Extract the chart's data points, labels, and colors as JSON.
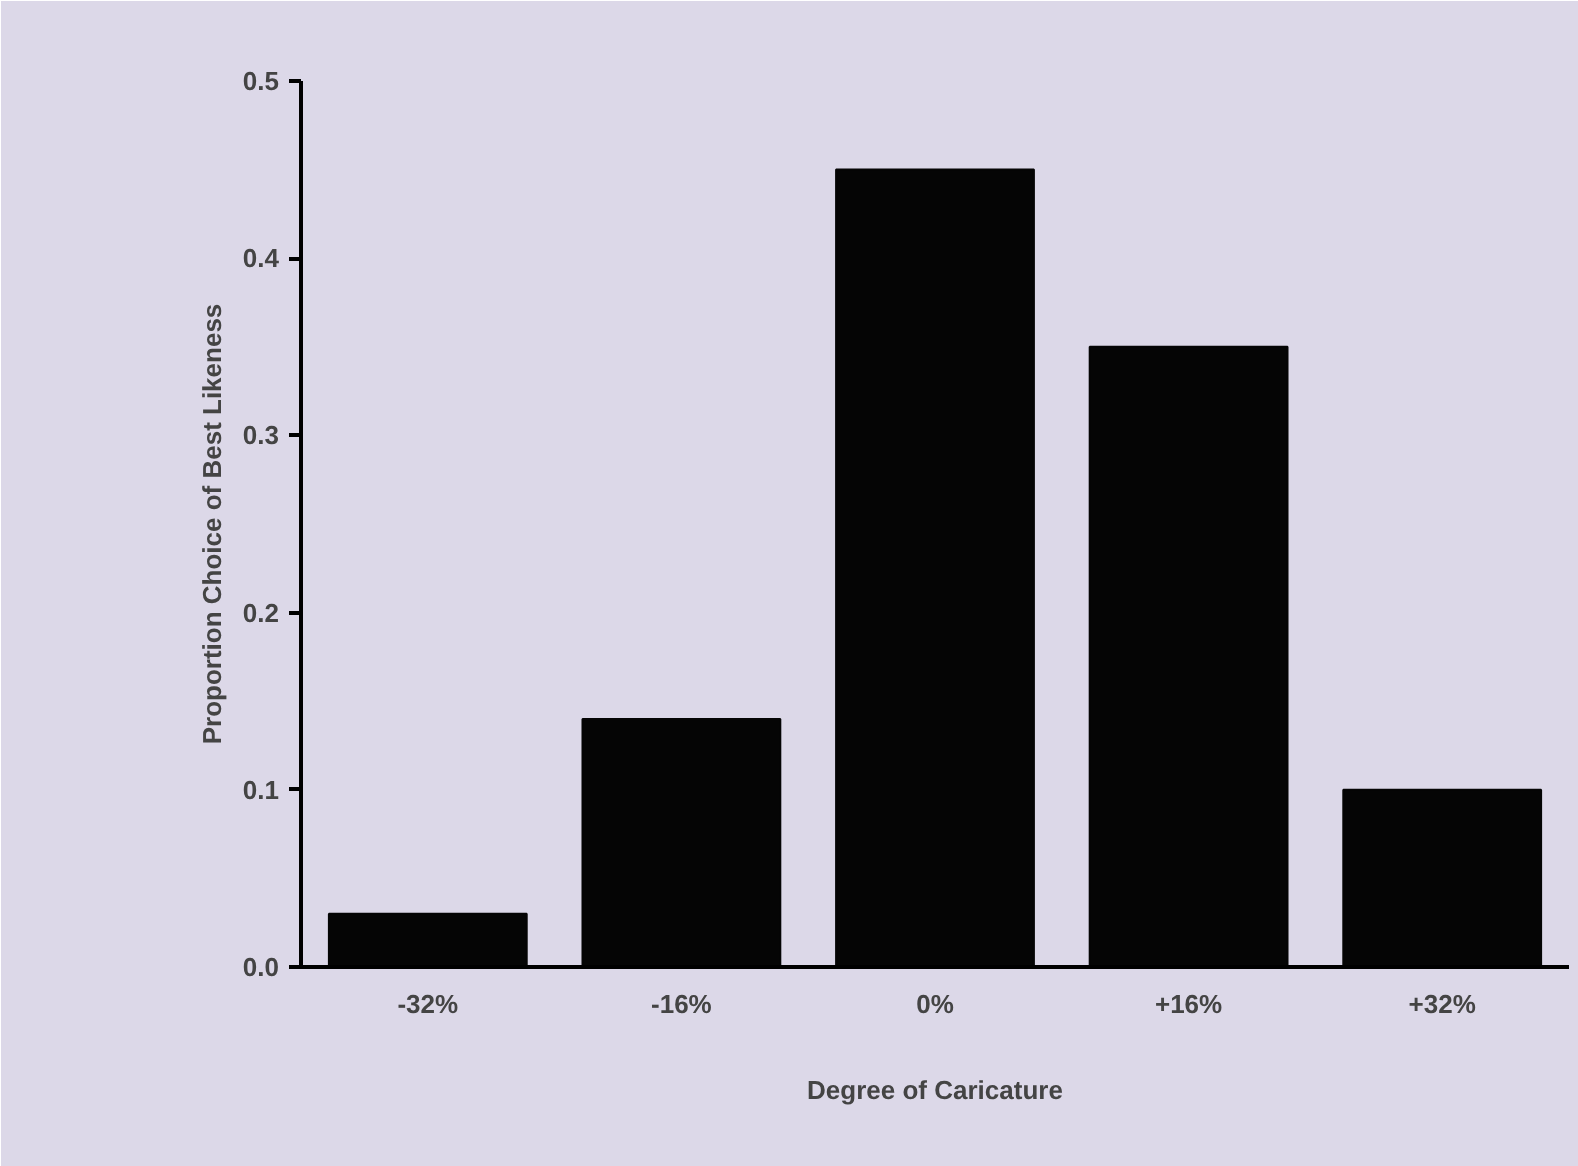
{
  "chart_data": {
    "type": "bar",
    "xlabel": "Degree of Caricature",
    "ylabel": "Proportion Choice of Best Likeness",
    "categories": [
      "-32%",
      "-16%",
      "0%",
      "+16%",
      "+32%"
    ],
    "values": [
      0.03,
      0.14,
      0.45,
      0.35,
      0.1
    ],
    "color": "#050505",
    "ylim": [
      0,
      0.5
    ],
    "yticks": [
      {
        "value": 0,
        "label": "0.0"
      },
      {
        "value": 0.1,
        "label": "0.1"
      },
      {
        "value": 0.2,
        "label": "0.2"
      },
      {
        "value": 0.3,
        "label": "0.3"
      },
      {
        "value": 0.4,
        "label": "0.4"
      },
      {
        "value": 0.5,
        "label": "0.5"
      }
    ],
    "grid": false
  }
}
